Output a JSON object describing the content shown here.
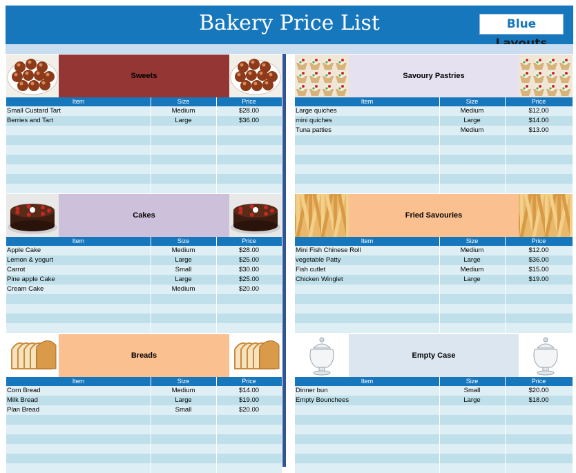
{
  "header": {
    "title": "Bakery Price List",
    "logo_part1": "Blue",
    "logo_part2": "Layouts"
  },
  "columns": {
    "item": "Item",
    "size": "Size",
    "price": "Price"
  },
  "sections": [
    {
      "name": "Sweets",
      "banner_color": "#943634",
      "image": "gulab-jamun",
      "rows": [
        {
          "item": "Small Custard Tart",
          "size": "Medium",
          "price": "$28.00"
        },
        {
          "item": "Berries and Tart",
          "size": "Large",
          "price": "$36.00"
        }
      ]
    },
    {
      "name": "Savoury Pastries",
      "banner_color": "#e6e1f0",
      "image": "pastries",
      "rows": [
        {
          "item": "Large quiches",
          "size": "Medium",
          "price": "$12.00"
        },
        {
          "item": "mini quiches",
          "size": "Large",
          "price": "$14.00"
        },
        {
          "item": "Tuna patties",
          "size": "Medium",
          "price": "$13.00"
        }
      ]
    },
    {
      "name": "Cakes",
      "banner_color": "#ccc0da",
      "image": "chocolate-cake",
      "rows": [
        {
          "item": "Apple Cake",
          "size": "Medium",
          "price": "$28.00"
        },
        {
          "item": "Lemon & yogurt",
          "size": "Large",
          "price": "$25.00"
        },
        {
          "item": "Carrot",
          "size": "Small",
          "price": "$30.00"
        },
        {
          "item": "Pine apple Cake",
          "size": "Large",
          "price": "$25.00"
        },
        {
          "item": "Cream Cake",
          "size": "Medium",
          "price": "$20.00"
        }
      ]
    },
    {
      "name": "Fried Savouries",
      "banner_color": "#fac090",
      "image": "fries",
      "rows": [
        {
          "item": "Mini Fish Chinese Roll",
          "size": "Medium",
          "price": "$12.00"
        },
        {
          "item": "vegetable Patty",
          "size": "Large",
          "price": "$36.00"
        },
        {
          "item": "Fish cutlet",
          "size": "Medium",
          "price": "$15.00"
        },
        {
          "item": "Chicken Winglet",
          "size": "Large",
          "price": "$19.00"
        }
      ]
    },
    {
      "name": "Breads",
      "banner_color": "#fac090",
      "image": "sliced-bread",
      "rows": [
        {
          "item": "Corn Bread",
          "size": "Medium",
          "price": "$14.00"
        },
        {
          "item": "Milk Bread",
          "size": "Large",
          "price": "$19.00"
        },
        {
          "item": "Plan Bread",
          "size": "Small",
          "price": "$20.00"
        }
      ]
    },
    {
      "name": "Empty Case",
      "banner_color": "#dce6f1",
      "image": "glass-jar",
      "rows": [
        {
          "item": "Dinner bun",
          "size": "Small",
          "price": "$20.00"
        },
        {
          "item": "Empty Bounchees",
          "size": "Large",
          "price": "$18.00"
        }
      ]
    }
  ]
}
